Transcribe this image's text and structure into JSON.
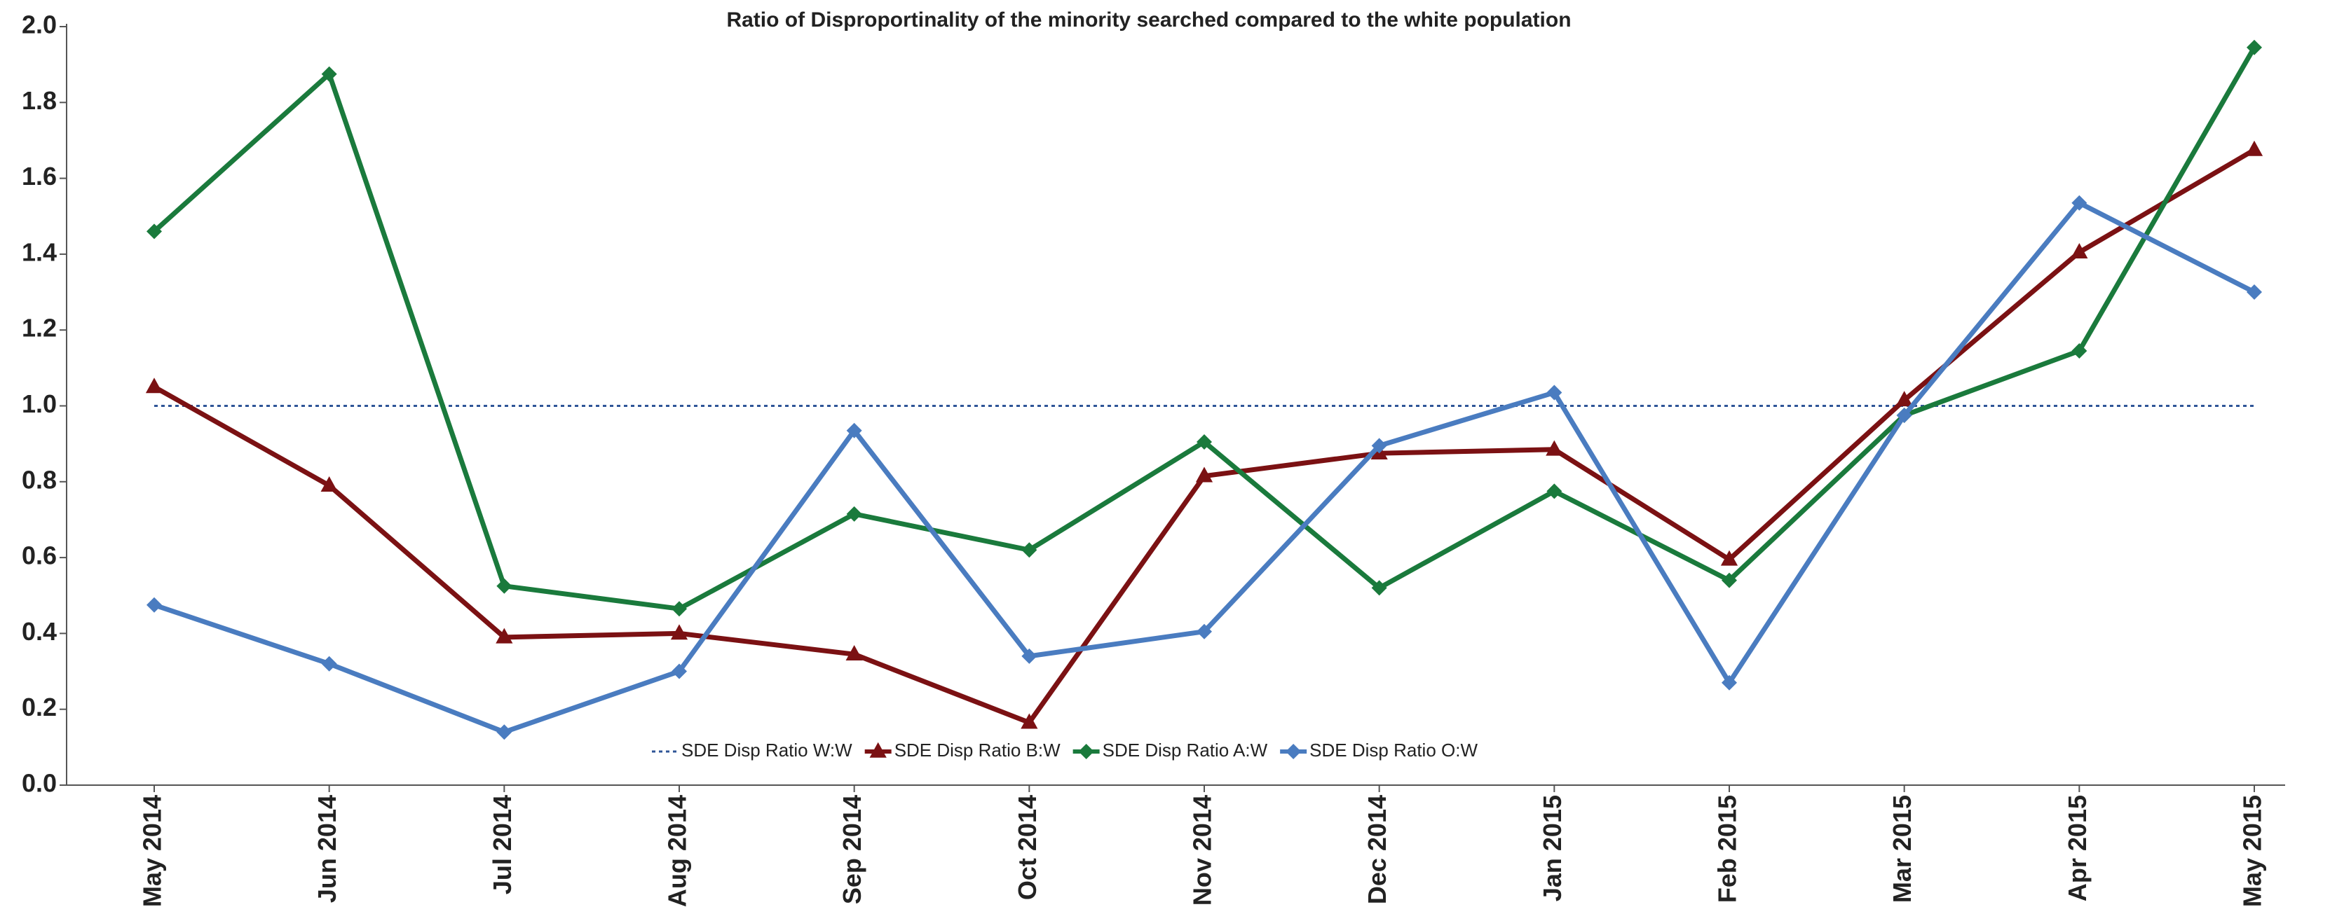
{
  "chart_data": {
    "type": "line",
    "title": "Ratio of Disproportinality of the minority searched compared to the white population",
    "categories": [
      "May 2014",
      "Jun 2014",
      "Jul 2014",
      "Aug 2014",
      "Sep 2014",
      "Oct 2014",
      "Nov 2014",
      "Dec 2014",
      "Jan 2015",
      "Feb 2015",
      "Mar 2015",
      "Apr 2015",
      "May 2015"
    ],
    "series": [
      {
        "name": "SDE Disp Ratio W:W",
        "color": "#2f5597",
        "line_style": "dotted",
        "marker": "none",
        "values": [
          1.0,
          1.0,
          1.0,
          1.0,
          1.0,
          1.0,
          1.0,
          1.0,
          1.0,
          1.0,
          1.0,
          1.0,
          1.0
        ]
      },
      {
        "name": "SDE Disp Ratio B:W",
        "color": "#7b1113",
        "line_style": "solid",
        "marker": "triangle",
        "values": [
          1.05,
          0.79,
          0.39,
          0.4,
          0.345,
          0.165,
          0.815,
          0.875,
          0.885,
          0.595,
          1.015,
          1.405,
          1.675
        ]
      },
      {
        "name": "SDE Disp Ratio A:W",
        "color": "#1a7a3c",
        "line_style": "solid",
        "marker": "diamond",
        "values": [
          1.46,
          1.875,
          0.525,
          0.465,
          0.715,
          0.62,
          0.905,
          0.52,
          0.775,
          0.54,
          0.975,
          1.145,
          1.945
        ]
      },
      {
        "name": "SDE Disp Ratio O:W",
        "color": "#4a7cc0",
        "line_style": "solid",
        "marker": "diamond",
        "values": [
          0.475,
          0.32,
          0.14,
          0.3,
          0.935,
          0.34,
          0.405,
          0.895,
          1.035,
          0.27,
          0.975,
          1.535,
          1.3
        ]
      }
    ],
    "ylim": [
      0,
      2
    ],
    "yticks": [
      {
        "value": 0,
        "label": "0.0"
      },
      {
        "value": 0.2,
        "label": "0.2"
      },
      {
        "value": 0.4,
        "label": "0.4"
      },
      {
        "value": 0.6,
        "label": "0.6"
      },
      {
        "value": 0.8,
        "label": "0.8"
      },
      {
        "value": 1,
        "label": "1.0"
      },
      {
        "value": 1.2,
        "label": "1.2"
      },
      {
        "value": 1.4,
        "label": "1.4"
      },
      {
        "value": 1.6,
        "label": "1.6"
      },
      {
        "value": 1.8,
        "label": "1.8"
      },
      {
        "value": 2,
        "label": "2.0"
      }
    ],
    "grid": false,
    "legend": "bottom"
  }
}
